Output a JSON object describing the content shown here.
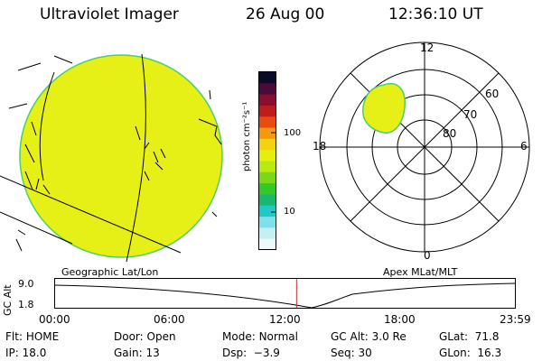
{
  "header": {
    "title": "Ultraviolet Imager",
    "date": "26 Aug 00",
    "time": "12:36:10 UT"
  },
  "colorbar": {
    "unit_label": "photon cm⁻²s⁻¹",
    "ticks": [
      "100",
      "10"
    ],
    "colors": [
      "#0a0a2a",
      "#4a0a3a",
      "#8a0f2f",
      "#c01c18",
      "#e84a10",
      "#f39a0c",
      "#f5d20f",
      "#e6ee0e",
      "#b7ea0f",
      "#7ad818",
      "#35c82a",
      "#1ab86e",
      "#20c8c8",
      "#7ee0e8",
      "#c6eff2",
      "#ecf8fa"
    ]
  },
  "geo_map": {
    "label": "Geographic Lat/Lon",
    "fill_color": "#e6ef16",
    "edge_color": "#4ad06a"
  },
  "polar_plot": {
    "label": "Apex MLat/MLT",
    "mlt_labels": {
      "top": "12",
      "left": "18",
      "right": "6",
      "bottom": "0"
    },
    "mlat_labels": [
      "60",
      "70",
      "80"
    ]
  },
  "altitude_panel": {
    "y_label": "GC Alt",
    "y_ticks": [
      "9.0",
      "1.8"
    ],
    "time_ticks": [
      "00:00",
      "06:00",
      "12:00",
      "18:00",
      "23:59"
    ],
    "marker_color": "#c03030",
    "marker_time_fraction": 0.5251
  },
  "info": {
    "row1": [
      {
        "key": "Flt:",
        "val": "HOME"
      },
      {
        "key": "Door:",
        "val": "Open"
      },
      {
        "key": "Mode:",
        "val": "Normal"
      },
      {
        "key": "GC Alt:",
        "val": "3.0 Re"
      },
      {
        "key": "GLat:",
        "val": "71.8"
      }
    ],
    "row2": [
      {
        "key": "IP:",
        "val": "18.0"
      },
      {
        "key": "Gain:",
        "val": "13"
      },
      {
        "key": "Dsp:",
        "val": "−3.9"
      },
      {
        "key": "Seq:",
        "val": "30"
      },
      {
        "key": "GLon:",
        "val": "16.3"
      }
    ]
  }
}
